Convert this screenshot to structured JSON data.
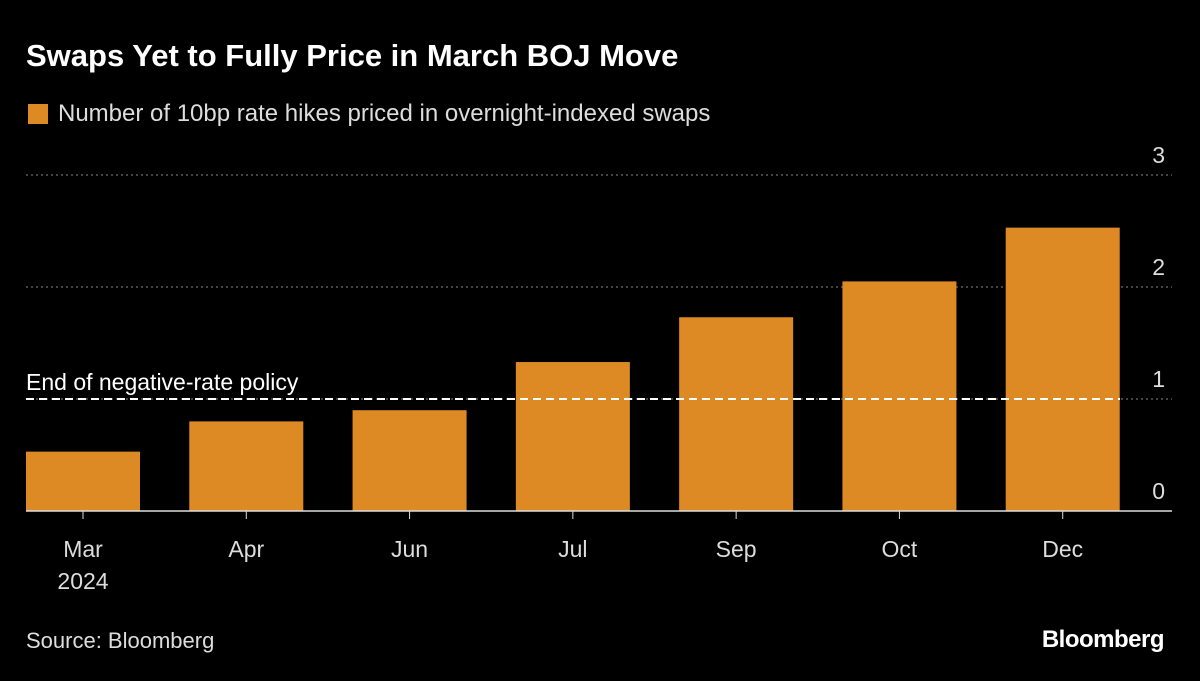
{
  "chart_data": {
    "type": "bar",
    "title": "Swaps Yet to Fully Price in March BOJ Move",
    "legend": [
      {
        "name": "Number of 10bp rate hikes priced in overnight-indexed swaps",
        "color": "#de8a24"
      }
    ],
    "categories": [
      "Mar",
      "Apr",
      "Jun",
      "Jul",
      "Sep",
      "Oct",
      "Dec"
    ],
    "category_sublabels": [
      "2024",
      "",
      "",
      "",
      "",
      "",
      ""
    ],
    "series": [
      {
        "name": "Number of 10bp rate hikes priced in overnight-indexed swaps",
        "values": [
          0.53,
          0.8,
          0.9,
          1.33,
          1.73,
          2.05,
          2.53
        ]
      }
    ],
    "ylim": [
      0,
      3
    ],
    "yticks": [
      0,
      1,
      2,
      3
    ],
    "yaxis_position": "right",
    "grid": true,
    "legend_position": "top-left",
    "annotations": [
      {
        "text": "End of negative-rate policy",
        "y": 1,
        "style": "dashed"
      }
    ],
    "source": "Source: Bloomberg",
    "logo": "Bloomberg"
  }
}
